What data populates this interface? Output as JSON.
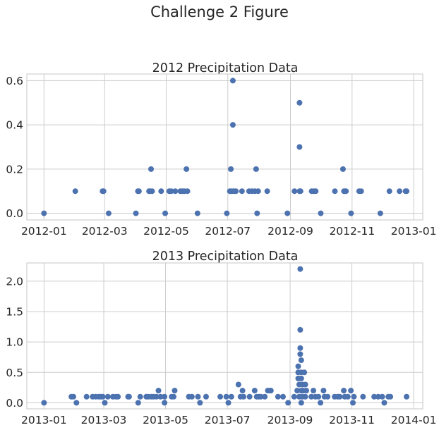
{
  "figure": {
    "suptitle": "Challenge 2 Figure"
  },
  "chart_data": [
    {
      "type": "scatter",
      "title": "2012 Precipitation Data",
      "xlabel": "",
      "ylabel": "",
      "color": "#4c72b0",
      "grid": true,
      "xlim": [
        "2011-12-15",
        "2013-01-10"
      ],
      "ylim": [
        -0.03,
        0.63
      ],
      "xticks": [
        "2012-01",
        "2012-03",
        "2012-05",
        "2012-07",
        "2012-09",
        "2012-11",
        "2013-01"
      ],
      "yticks": [
        0.0,
        0.2,
        0.4,
        0.6
      ],
      "ytick_labels": [
        "0.0",
        "0.2",
        "0.4",
        "0.6"
      ],
      "points": [
        [
          "2012-01-01",
          0.0
        ],
        [
          "2012-02-01",
          0.1
        ],
        [
          "2012-02-28",
          0.1
        ],
        [
          "2012-02-29",
          0.1
        ],
        [
          "2012-03-05",
          0.0
        ],
        [
          "2012-04-01",
          0.0
        ],
        [
          "2012-04-03",
          0.1
        ],
        [
          "2012-04-04",
          0.1
        ],
        [
          "2012-04-14",
          0.1
        ],
        [
          "2012-04-15",
          0.1
        ],
        [
          "2012-04-16",
          0.2
        ],
        [
          "2012-04-17",
          0.1
        ],
        [
          "2012-04-26",
          0.1
        ],
        [
          "2012-04-30",
          0.0
        ],
        [
          "2012-05-04",
          0.1
        ],
        [
          "2012-05-06",
          0.1
        ],
        [
          "2012-05-10",
          0.1
        ],
        [
          "2012-05-15",
          0.1
        ],
        [
          "2012-05-17",
          0.1
        ],
        [
          "2012-05-19",
          0.1
        ],
        [
          "2012-05-21",
          0.2
        ],
        [
          "2012-05-22",
          0.1
        ],
        [
          "2012-06-01",
          0.0
        ],
        [
          "2012-06-30",
          0.0
        ],
        [
          "2012-07-03",
          0.1
        ],
        [
          "2012-07-04",
          0.2
        ],
        [
          "2012-07-05",
          0.1
        ],
        [
          "2012-07-06",
          0.6
        ],
        [
          "2012-07-06",
          0.4
        ],
        [
          "2012-07-07",
          0.1
        ],
        [
          "2012-07-09",
          0.1
        ],
        [
          "2012-07-15",
          0.1
        ],
        [
          "2012-07-22",
          0.1
        ],
        [
          "2012-07-25",
          0.1
        ],
        [
          "2012-07-28",
          0.1
        ],
        [
          "2012-07-29",
          0.2
        ],
        [
          "2012-07-30",
          0.0
        ],
        [
          "2012-07-31",
          0.1
        ],
        [
          "2012-08-09",
          0.1
        ],
        [
          "2012-08-29",
          0.0
        ],
        [
          "2012-09-05",
          0.1
        ],
        [
          "2012-09-10",
          0.5
        ],
        [
          "2012-09-10",
          0.3
        ],
        [
          "2012-09-10",
          0.1
        ],
        [
          "2012-09-11",
          0.1
        ],
        [
          "2012-09-22",
          0.1
        ],
        [
          "2012-09-24",
          0.1
        ],
        [
          "2012-09-26",
          0.1
        ],
        [
          "2012-10-01",
          0.0
        ],
        [
          "2012-10-15",
          0.1
        ],
        [
          "2012-10-23",
          0.2
        ],
        [
          "2012-10-24",
          0.1
        ],
        [
          "2012-10-25",
          0.1
        ],
        [
          "2012-10-26",
          0.1
        ],
        [
          "2012-10-31",
          0.0
        ],
        [
          "2012-11-08",
          0.1
        ],
        [
          "2012-11-10",
          0.1
        ],
        [
          "2012-11-29",
          0.0
        ],
        [
          "2012-12-08",
          0.1
        ],
        [
          "2012-12-18",
          0.1
        ],
        [
          "2012-12-24",
          0.1
        ],
        [
          "2012-12-25",
          0.1
        ]
      ]
    },
    {
      "type": "scatter",
      "title": "2013 Precipitation Data",
      "xlabel": "",
      "ylabel": "",
      "color": "#4c72b0",
      "grid": true,
      "xlim": [
        "2012-12-15",
        "2014-01-10"
      ],
      "ylim": [
        -0.1,
        2.3
      ],
      "xticks": [
        "2013-01",
        "2013-03",
        "2013-05",
        "2013-07",
        "2013-09",
        "2013-11",
        "2014-01"
      ],
      "yticks": [
        0.0,
        0.5,
        1.0,
        1.5,
        2.0
      ],
      "ytick_labels": [
        "0.0",
        "0.5",
        "1.0",
        "1.5",
        "2.0"
      ],
      "points": [
        [
          "2013-01-01",
          0.0
        ],
        [
          "2013-01-28",
          0.1
        ],
        [
          "2013-01-30",
          0.1
        ],
        [
          "2013-02-02",
          0.0
        ],
        [
          "2013-02-12",
          0.1
        ],
        [
          "2013-02-18",
          0.1
        ],
        [
          "2013-02-21",
          0.1
        ],
        [
          "2013-02-24",
          0.1
        ],
        [
          "2013-02-26",
          0.1
        ],
        [
          "2013-02-28",
          0.1
        ],
        [
          "2013-03-02",
          0.0
        ],
        [
          "2013-03-05",
          0.1
        ],
        [
          "2013-03-10",
          0.1
        ],
        [
          "2013-03-13",
          0.1
        ],
        [
          "2013-03-15",
          0.1
        ],
        [
          "2013-03-25",
          0.1
        ],
        [
          "2013-03-26",
          0.1
        ],
        [
          "2013-04-04",
          0.0
        ],
        [
          "2013-04-06",
          0.1
        ],
        [
          "2013-04-12",
          0.1
        ],
        [
          "2013-04-14",
          0.1
        ],
        [
          "2013-04-17",
          0.1
        ],
        [
          "2013-04-19",
          0.1
        ],
        [
          "2013-04-22",
          0.1
        ],
        [
          "2013-04-24",
          0.2
        ],
        [
          "2013-04-26",
          0.1
        ],
        [
          "2013-04-30",
          0.0
        ],
        [
          "2013-04-30",
          0.1
        ],
        [
          "2013-05-07",
          0.1
        ],
        [
          "2013-05-09",
          0.1
        ],
        [
          "2013-05-10",
          0.2
        ],
        [
          "2013-05-24",
          0.1
        ],
        [
          "2013-05-27",
          0.1
        ],
        [
          "2013-06-02",
          0.1
        ],
        [
          "2013-06-04",
          0.0
        ],
        [
          "2013-06-10",
          0.1
        ],
        [
          "2013-06-24",
          0.1
        ],
        [
          "2013-06-30",
          0.1
        ],
        [
          "2013-07-02",
          0.0
        ],
        [
          "2013-07-05",
          0.1
        ],
        [
          "2013-07-12",
          0.3
        ],
        [
          "2013-07-14",
          0.1
        ],
        [
          "2013-07-16",
          0.2
        ],
        [
          "2013-07-17",
          0.1
        ],
        [
          "2013-07-23",
          0.1
        ],
        [
          "2013-07-28",
          0.2
        ],
        [
          "2013-07-30",
          0.1
        ],
        [
          "2013-08-01",
          0.1
        ],
        [
          "2013-08-03",
          0.1
        ],
        [
          "2013-08-07",
          0.1
        ],
        [
          "2013-08-10",
          0.2
        ],
        [
          "2013-08-12",
          0.2
        ],
        [
          "2013-08-13",
          0.2
        ],
        [
          "2013-08-20",
          0.1
        ],
        [
          "2013-08-25",
          0.1
        ],
        [
          "2013-08-30",
          0.0
        ],
        [
          "2013-09-05",
          0.1
        ],
        [
          "2013-09-08",
          0.2
        ],
        [
          "2013-09-09",
          0.5
        ],
        [
          "2013-09-09",
          0.6
        ],
        [
          "2013-09-09",
          0.4
        ],
        [
          "2013-09-10",
          0.1
        ],
        [
          "2013-09-10",
          0.3
        ],
        [
          "2013-09-11",
          2.2
        ],
        [
          "2013-09-11",
          1.2
        ],
        [
          "2013-09-11",
          0.9
        ],
        [
          "2013-09-11",
          0.8
        ],
        [
          "2013-09-12",
          0.7
        ],
        [
          "2013-09-12",
          0.5
        ],
        [
          "2013-09-12",
          0.4
        ],
        [
          "2013-09-12",
          0.2
        ],
        [
          "2013-09-12",
          0.0
        ],
        [
          "2013-09-13",
          0.3
        ],
        [
          "2013-09-13",
          0.1
        ],
        [
          "2013-09-14",
          0.2
        ],
        [
          "2013-09-15",
          0.5
        ],
        [
          "2013-09-16",
          0.3
        ],
        [
          "2013-09-16",
          0.1
        ],
        [
          "2013-09-17",
          0.2
        ],
        [
          "2013-09-22",
          0.1
        ],
        [
          "2013-09-24",
          0.2
        ],
        [
          "2013-09-26",
          0.1
        ],
        [
          "2013-09-29",
          0.1
        ],
        [
          "2013-10-01",
          0.0
        ],
        [
          "2013-10-04",
          0.2
        ],
        [
          "2013-10-05",
          0.1
        ],
        [
          "2013-10-08",
          0.1
        ],
        [
          "2013-10-15",
          0.1
        ],
        [
          "2013-10-18",
          0.1
        ],
        [
          "2013-10-20",
          0.1
        ],
        [
          "2013-10-24",
          0.2
        ],
        [
          "2013-10-25",
          0.1
        ],
        [
          "2013-10-28",
          0.1
        ],
        [
          "2013-10-31",
          0.2
        ],
        [
          "2013-11-02",
          0.0
        ],
        [
          "2013-11-03",
          0.1
        ],
        [
          "2013-11-12",
          0.1
        ],
        [
          "2013-11-23",
          0.1
        ],
        [
          "2013-11-27",
          0.1
        ],
        [
          "2013-12-01",
          0.1
        ],
        [
          "2013-12-03",
          0.0
        ],
        [
          "2013-12-07",
          0.1
        ],
        [
          "2013-12-09",
          0.1
        ],
        [
          "2013-12-25",
          0.1
        ]
      ]
    }
  ]
}
